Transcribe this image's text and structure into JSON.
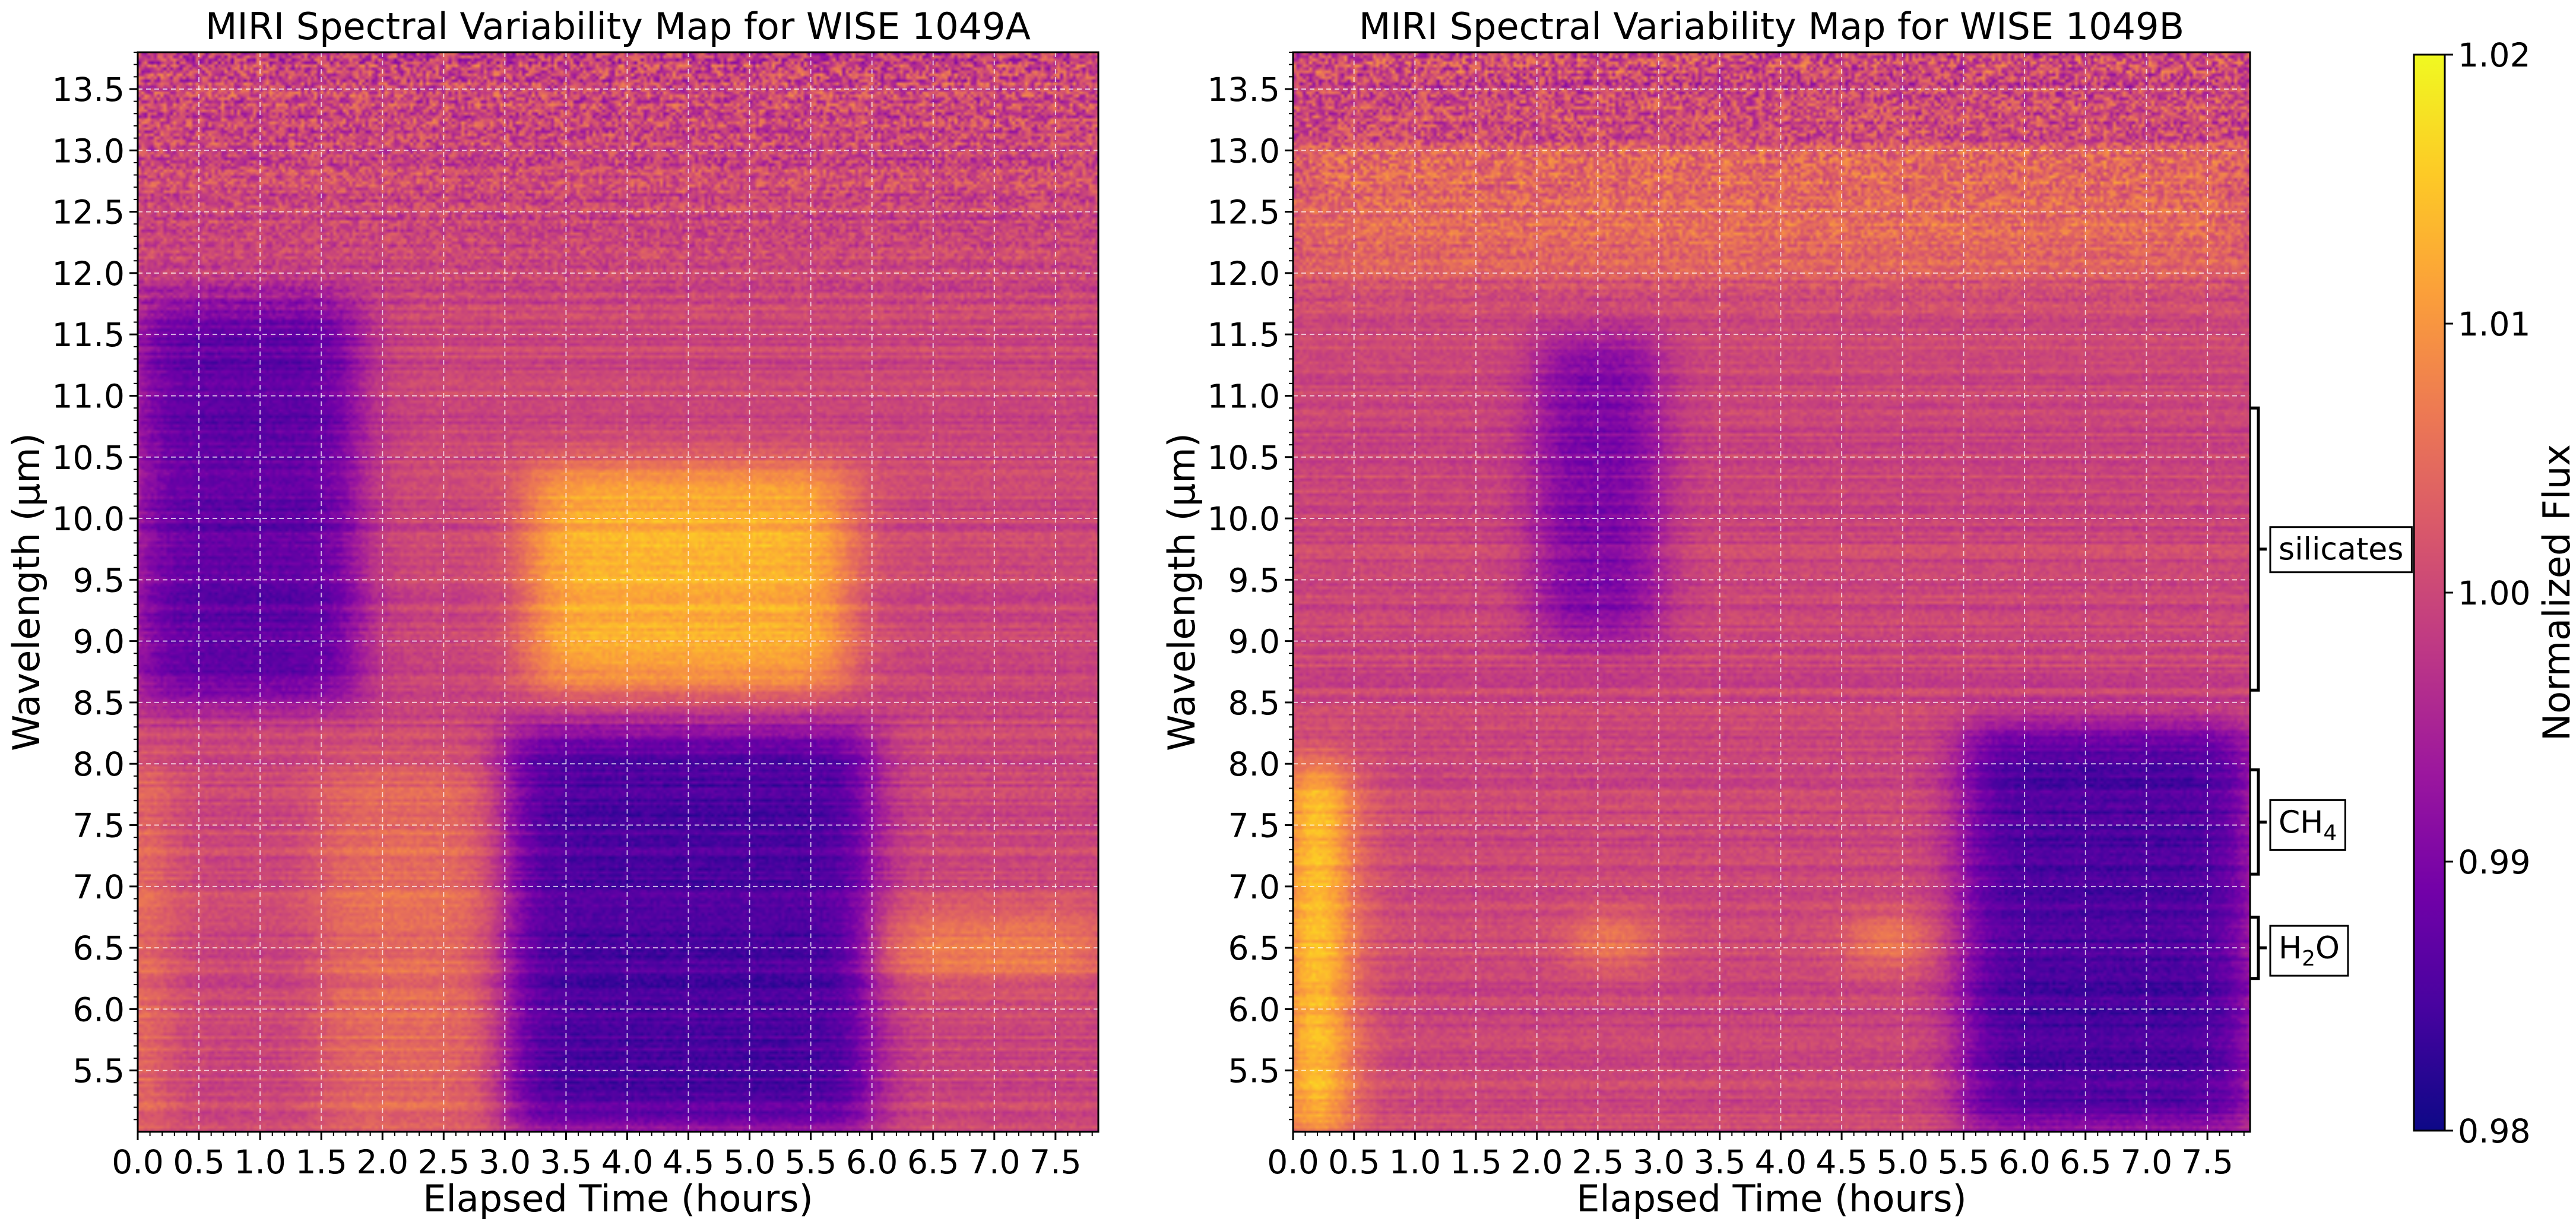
{
  "chart_data": [
    {
      "type": "heatmap",
      "title": "MIRI Spectral Variability Map for WISE 1049A",
      "xlabel": "Elapsed Time (hours)",
      "ylabel": "Wavelength (μm)",
      "xlim": [
        0.0,
        7.85
      ],
      "ylim": [
        5.0,
        13.8
      ],
      "x_ticks": [
        "0.0",
        "0.5",
        "1.0",
        "1.5",
        "2.0",
        "2.5",
        "3.0",
        "3.5",
        "4.0",
        "4.5",
        "5.0",
        "5.5",
        "6.0",
        "6.5",
        "7.0",
        "7.5"
      ],
      "y_ticks": [
        "5.5",
        "6.0",
        "6.5",
        "7.0",
        "7.5",
        "8.0",
        "8.5",
        "9.0",
        "9.5",
        "10.0",
        "10.5",
        "11.0",
        "11.5",
        "12.0",
        "12.5",
        "13.0",
        "13.5"
      ],
      "grid": true,
      "colormap": "plasma",
      "features": [
        {
          "t": [
            3.2,
            5.8
          ],
          "wl": [
            8.6,
            10.4
          ],
          "flux": 1.013
        },
        {
          "t": [
            3.0,
            6.0
          ],
          "wl": [
            5.0,
            8.3
          ],
          "flux": 0.985
        },
        {
          "t": [
            0.0,
            1.8
          ],
          "wl": [
            8.5,
            11.8
          ],
          "flux": 0.987
        },
        {
          "t": [
            1.5,
            3.0
          ],
          "wl": [
            5.0,
            8.0
          ],
          "flux": 1.005
        },
        {
          "t": [
            6.0,
            7.85
          ],
          "wl": [
            6.3,
            6.7
          ],
          "flux": 1.01
        },
        {
          "t": [
            0.0,
            0.1
          ],
          "wl": [
            5.0,
            8.0
          ],
          "flux": 1.012
        }
      ]
    },
    {
      "type": "heatmap",
      "title": "MIRI Spectral Variability Map for WISE 1049B",
      "xlabel": "Elapsed Time (hours)",
      "ylabel": "Wavelength (μm)",
      "xlim": [
        0.0,
        7.85
      ],
      "ylim": [
        5.0,
        13.8
      ],
      "x_ticks": [
        "0.0",
        "0.5",
        "1.0",
        "1.5",
        "2.0",
        "2.5",
        "3.0",
        "3.5",
        "4.0",
        "4.5",
        "5.0",
        "5.5",
        "6.0",
        "6.5",
        "7.0",
        "7.5"
      ],
      "y_ticks": [
        "5.5",
        "6.0",
        "6.5",
        "7.0",
        "7.5",
        "8.0",
        "8.5",
        "9.0",
        "9.5",
        "10.0",
        "10.5",
        "11.0",
        "11.5",
        "12.0",
        "12.5",
        "13.0",
        "13.5"
      ],
      "grid": true,
      "colormap": "plasma",
      "annotations": [
        {
          "text": "silicates",
          "wl_range": [
            8.6,
            10.9
          ]
        },
        {
          "text": "CH",
          "sub": "4",
          "wl_range": [
            7.1,
            7.95
          ]
        },
        {
          "text": "H",
          "sub": "2",
          "tail": "O",
          "wl_range": [
            6.25,
            6.75
          ]
        }
      ],
      "features": [
        {
          "t": [
            0.0,
            0.4
          ],
          "wl": [
            5.0,
            8.0
          ],
          "flux": 1.02
        },
        {
          "t": [
            5.5,
            7.85
          ],
          "wl": [
            5.0,
            8.3
          ],
          "flux": 0.985
        },
        {
          "t": [
            2.0,
            3.0
          ],
          "wl": [
            9.0,
            11.5
          ],
          "flux": 0.99
        },
        {
          "t": [
            2.3,
            2.9
          ],
          "wl": [
            6.4,
            6.7
          ],
          "flux": 1.01
        },
        {
          "t": [
            4.6,
            5.2
          ],
          "wl": [
            6.4,
            6.7
          ],
          "flux": 1.01
        },
        {
          "t": [
            0.0,
            7.85
          ],
          "wl": [
            12.0,
            13.0
          ],
          "flux": 1.005
        }
      ]
    }
  ],
  "colorbar": {
    "label": "Normalized Flux",
    "min": 0.98,
    "max": 1.02,
    "ticks": [
      "0.98",
      "0.99",
      "1.00",
      "1.01",
      "1.02"
    ],
    "colormap": "plasma"
  },
  "colors": {
    "plasma_stops": [
      "#0d0887",
      "#46039f",
      "#7201a8",
      "#9c179e",
      "#bd3786",
      "#d8576b",
      "#ed7953",
      "#fb9f3a",
      "#fdca26",
      "#f0f921"
    ],
    "grid": "#ffffff",
    "annotation_box": "#ffffff"
  }
}
